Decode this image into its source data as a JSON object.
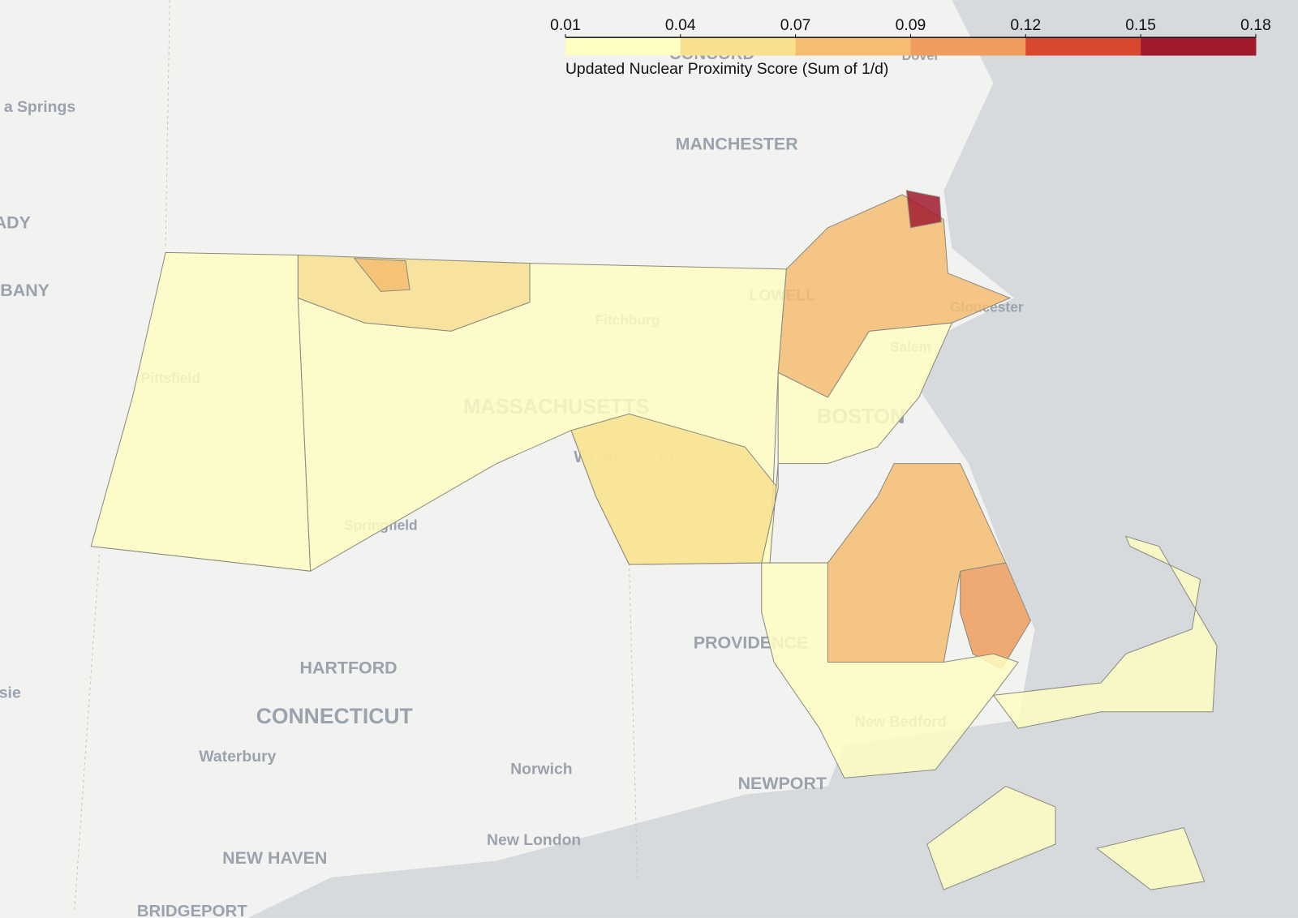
{
  "chart_data": {
    "type": "choropleth",
    "colorbar_title": "Updated Nuclear Proximity Score (Sum of 1/d)",
    "zlim": [
      0.01,
      0.178
    ],
    "zticks": [
      0.01,
      {
        "value": 0.038,
        "label": "0.04"
      },
      {
        "value": 0.066,
        "label": "0.07"
      },
      {
        "value": 0.094,
        "label": "0.09"
      },
      {
        "value": 0.122,
        "label": "0.12"
      },
      0.15,
      {
        "value": 0.178,
        "label": "0.18"
      }
    ],
    "colors": [
      "#fefdc2",
      "#f8e08e",
      "#f4bd72",
      "#ee9d5e",
      "#d9472f",
      "#a11b2e"
    ],
    "values": [
      0.02,
      0.06,
      0.08,
      0.025,
      0.05,
      0.08,
      0.16,
      0.03,
      0.07,
      0.12,
      0.03,
      0.02,
      0.02,
      0.02
    ],
    "map_labels": [
      "CONCORD",
      "Dover",
      "a Springs",
      "MANCHESTER",
      "ADY",
      "BANY",
      "LOWELL",
      "Fitchburg",
      "Gloucester",
      "Salem",
      "Pittsfield",
      "MASSACHUSETTS",
      "BOSTON",
      "WORCESTER",
      "Springfield",
      "PROVIDENCE",
      "HARTFORD",
      "sie",
      "CONNECTICUT",
      "New Bedford",
      "Waterbury",
      "Norwich",
      "NEWPORT",
      "New London",
      "NEW HAVEN",
      "BRIDGEPORT"
    ]
  }
}
